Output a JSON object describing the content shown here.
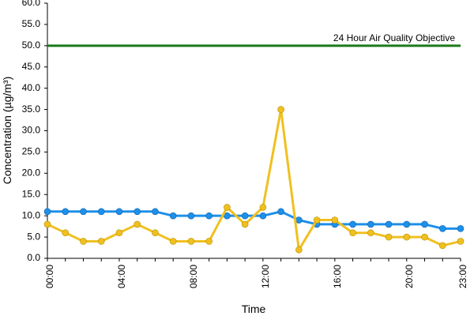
{
  "chart_data": {
    "type": "line",
    "title": "",
    "xlabel": "Time",
    "ylabel": "Concentration (µg/m³)",
    "ylim": [
      0,
      60
    ],
    "y_ticks": [
      "0.0",
      "5.0",
      "10.0",
      "15.0",
      "20.0",
      "25.0",
      "30.0",
      "35.0",
      "40.0",
      "45.0",
      "50.0",
      "55.0",
      "60.0"
    ],
    "x_ticks": [
      "00:00",
      "04:00",
      "08:00",
      "12:00",
      "16:00",
      "20:00",
      "23:00"
    ],
    "x": [
      0,
      1,
      2,
      3,
      4,
      5,
      6,
      7,
      8,
      9,
      10,
      11,
      12,
      13,
      14,
      15,
      16,
      17,
      18,
      19,
      20,
      21,
      22,
      23
    ],
    "series": [
      {
        "color": "#1e90e8",
        "values": [
          11,
          11,
          11,
          11,
          11,
          11,
          11,
          10,
          10,
          10,
          10,
          10,
          10,
          11,
          9,
          8,
          8,
          8,
          8,
          8,
          8,
          8,
          7,
          7
        ]
      },
      {
        "color": "#f0c020",
        "values": [
          8,
          6,
          4,
          4,
          6,
          8,
          6,
          4,
          4,
          4,
          12,
          8,
          12,
          35,
          2,
          9,
          9,
          6,
          6,
          5,
          5,
          5,
          3,
          4
        ]
      }
    ],
    "objective": {
      "value": 50,
      "label": "24 Hour Air Quality Objective",
      "color": "#1a7a1a"
    },
    "grid": false,
    "legend": "none"
  }
}
